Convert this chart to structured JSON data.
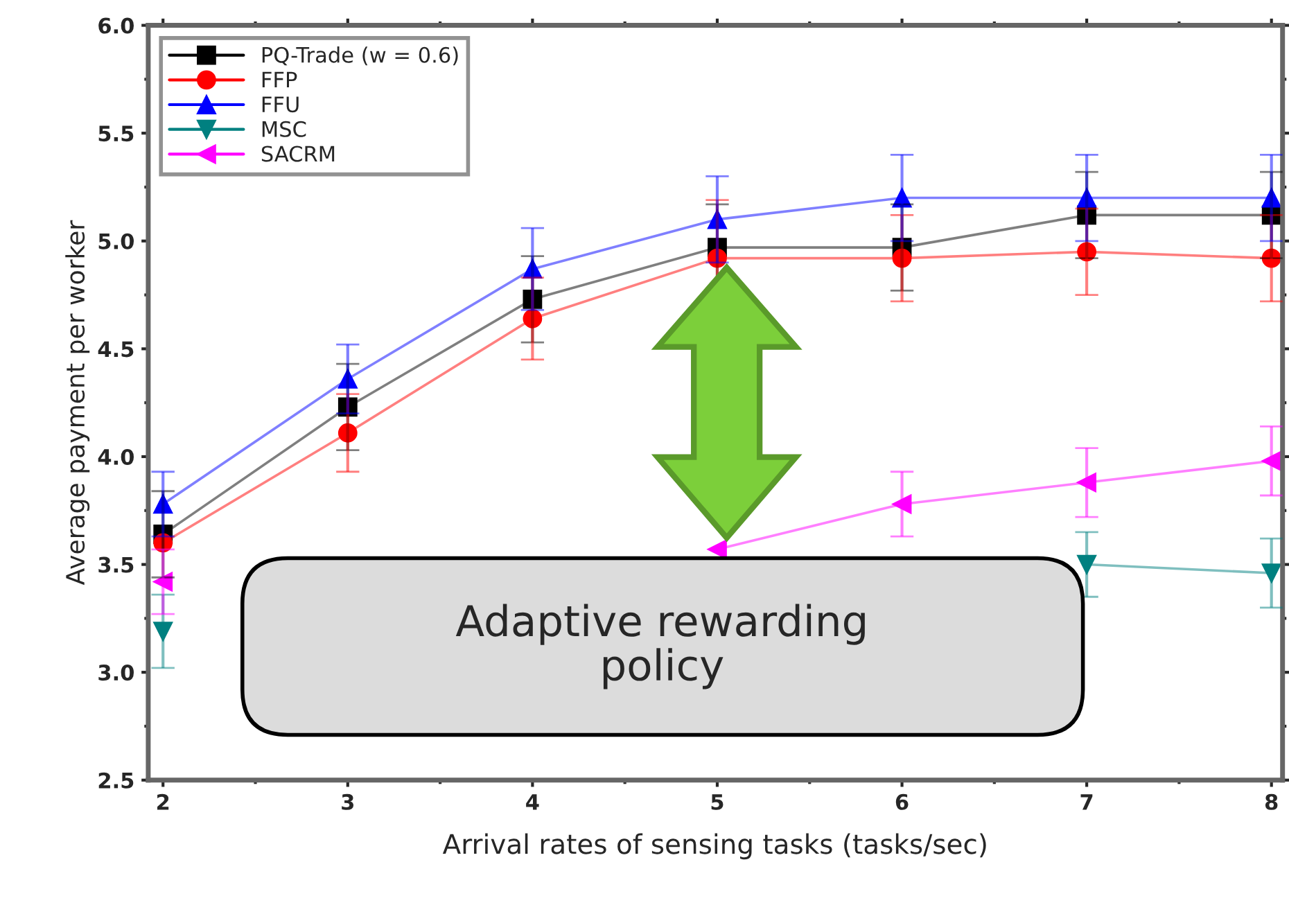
{
  "chart_data": {
    "type": "line",
    "xlabel": "Arrival rates of sensing tasks (tasks/sec)",
    "ylabel": "Average payment per worker",
    "x": [
      2,
      3,
      4,
      5,
      6,
      7,
      8
    ],
    "series": [
      {
        "name": "PQ-Trade (w = 0.6)",
        "color": "#000000",
        "marker": "square",
        "values": [
          3.64,
          4.23,
          4.73,
          4.97,
          4.97,
          5.12,
          5.12
        ],
        "errors": [
          0.2,
          0.2,
          0.2,
          0.2,
          0.2,
          0.2,
          0.2
        ]
      },
      {
        "name": "FFP",
        "color": "#ff0000",
        "marker": "circle",
        "values": [
          3.6,
          4.11,
          4.64,
          4.92,
          4.92,
          4.95,
          4.92
        ],
        "errors": [
          null,
          0.18,
          0.19,
          0.27,
          0.2,
          0.2,
          0.2
        ]
      },
      {
        "name": "FFU",
        "color": "#0000ff",
        "marker": "triangle",
        "values": [
          3.78,
          4.36,
          4.87,
          5.1,
          5.2,
          5.2,
          5.2
        ],
        "errors": [
          0.15,
          0.16,
          0.19,
          0.2,
          0.2,
          0.2,
          0.2
        ]
      },
      {
        "name": "MSC",
        "color": "#008080",
        "marker": "triangle_down",
        "values": [
          3.19,
          null,
          null,
          null,
          null,
          3.5,
          3.46
        ],
        "errors": [
          0.17,
          null,
          null,
          null,
          null,
          0.15,
          0.16
        ]
      },
      {
        "name": "SACRM",
        "color": "#ff00ff",
        "marker": "triangle_left",
        "values": [
          3.42,
          null,
          null,
          3.57,
          3.78,
          3.88,
          3.98
        ],
        "errors": [
          0.15,
          null,
          null,
          null,
          0.15,
          0.16,
          0.16
        ]
      }
    ],
    "xlim": [
      1.92,
      8.06
    ],
    "ylim": [
      2.5,
      6.0
    ],
    "xticks": [
      2,
      3,
      4,
      5,
      6,
      7,
      8
    ],
    "yticks": [
      {
        "value": 2.5,
        "label": "2.5"
      },
      {
        "value": 3,
        "label": "3.0"
      },
      {
        "value": 3.5,
        "label": "3.5"
      },
      {
        "value": 4,
        "label": "4.0"
      },
      {
        "value": 4.5,
        "label": "4.5"
      },
      {
        "value": 5,
        "label": "5.0"
      },
      {
        "value": 5.5,
        "label": "5.5"
      },
      {
        "value": 6,
        "label": "6.0"
      }
    ],
    "grid": false,
    "legend": "top left",
    "annotations": [
      "Adaptive rewarding policy"
    ]
  }
}
